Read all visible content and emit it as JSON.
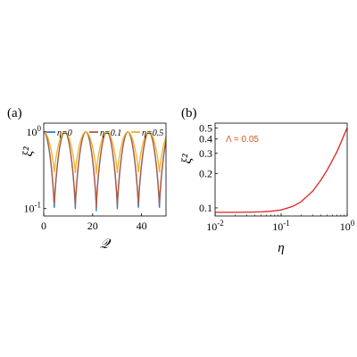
{
  "chart_data": [
    {
      "panel": "(a)",
      "type": "line",
      "xlabel": "𝒬",
      "ylabel": "ξ²",
      "xlim": [
        0,
        50
      ],
      "ylim": [
        0.08,
        1.3
      ],
      "yscale": "log",
      "xticks": [
        0,
        20,
        40
      ],
      "yticks": [
        {
          "value": 0.1,
          "base": "10",
          "exp": "-1"
        },
        {
          "value": 1,
          "base": "10",
          "exp": "0"
        }
      ],
      "grid": false,
      "legend": "top",
      "series": [
        {
          "name": "η=0",
          "color": "#3a78c3",
          "period": 8.6,
          "min": 0.092,
          "max": 1.0
        },
        {
          "name": "η=0.1",
          "color": "#b65a3a",
          "period": 8.6,
          "min": 0.102,
          "max": 1.0
        },
        {
          "name": "η=0.5",
          "color": "#e8b52a",
          "period": 8.6,
          "min": 0.28,
          "max": 1.0
        }
      ]
    },
    {
      "panel": "(b)",
      "type": "line",
      "xlabel": "η",
      "ylabel": "ξ²",
      "xscale": "log",
      "xlim": [
        0.01,
        1
      ],
      "ylim": [
        0.085,
        0.55
      ],
      "xticks": [
        {
          "value": 0.01,
          "base": "10",
          "exp": "-2"
        },
        {
          "value": 0.1,
          "base": "10",
          "exp": "-1"
        },
        {
          "value": 1,
          "base": "10",
          "exp": "0"
        }
      ],
      "yticks": [
        0.1,
        0.2,
        0.3,
        0.4,
        0.5
      ],
      "annotation": "Λ = 0.05",
      "series": [
        {
          "color": "#e02020",
          "x": [
            0.01,
            0.02,
            0.03,
            0.05,
            0.07,
            0.1,
            0.15,
            0.2,
            0.3,
            0.4,
            0.5,
            0.6,
            0.7,
            0.8,
            0.9,
            1.0
          ],
          "y": [
            0.0915,
            0.0915,
            0.0917,
            0.0923,
            0.0935,
            0.096,
            0.103,
            0.113,
            0.14,
            0.175,
            0.215,
            0.262,
            0.31,
            0.37,
            0.435,
            0.5
          ]
        }
      ]
    }
  ]
}
